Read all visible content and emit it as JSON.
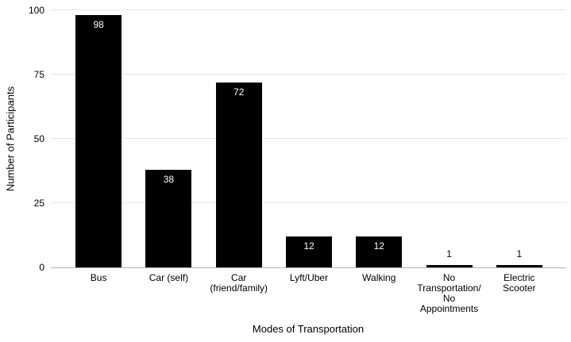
{
  "chart_data": {
    "type": "bar",
    "title": "",
    "xlabel": "Modes of Transportation",
    "ylabel": "Number of Participants",
    "categories": [
      "Bus",
      "Car (self)",
      "Car (friend/family)",
      "Lyft/Uber",
      "Walking",
      "No Transportation/ No Appointments",
      "Electric Scooter"
    ],
    "category_display_lines": [
      [
        "Bus"
      ],
      [
        "Car (self)"
      ],
      [
        "Car",
        "(friend/family)"
      ],
      [
        "Lyft/Uber"
      ],
      [
        "Walking"
      ],
      [
        "No",
        "Transportation/",
        "No",
        "Appointments"
      ],
      [
        "Electric",
        "Scooter"
      ]
    ],
    "values": [
      98,
      38,
      72,
      12,
      12,
      1,
      1
    ],
    "value_labels": [
      "98",
      "38",
      "72",
      "12",
      "12",
      "1",
      "1"
    ],
    "yticks": [
      0,
      25,
      50,
      75,
      100
    ],
    "ylim": [
      0,
      100
    ],
    "grid": true,
    "legend": false,
    "colors": {
      "bar": "#000000",
      "value_label_inside": "#ffffff",
      "value_label_outside": "#000000",
      "gridline": "#e7e7e7",
      "axis_line": "#b3b3b3",
      "text": "#000000",
      "background": "#ffffff"
    }
  }
}
